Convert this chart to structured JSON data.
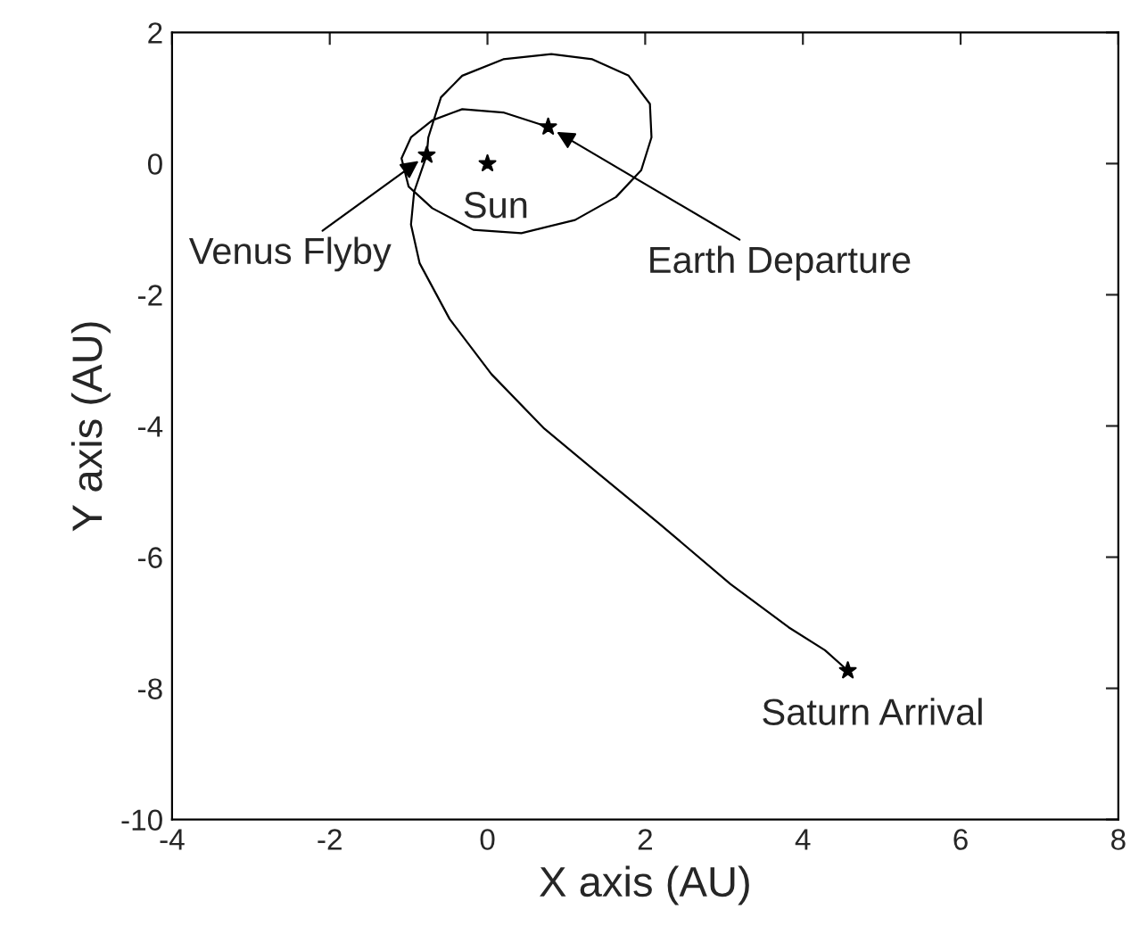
{
  "chart_data": {
    "type": "line",
    "xlabel": "X axis (AU)",
    "ylabel": "Y axis (AU)",
    "xlim": [
      -4,
      8
    ],
    "ylim": [
      -10,
      2
    ],
    "xticks": [
      -4,
      -2,
      0,
      2,
      4,
      6,
      8
    ],
    "yticks": [
      -10,
      -8,
      -6,
      -4,
      -2,
      0,
      2
    ],
    "grid": false,
    "legend": false,
    "series": [
      {
        "color": "#000000",
        "marker": "none",
        "line_style": "solid",
        "x": [
          0.77,
          0.2,
          -0.32,
          -0.7,
          -0.97,
          -1.09,
          -1.0,
          -0.7,
          -0.18,
          0.43,
          1.11,
          1.63,
          1.95,
          2.08,
          2.06,
          1.79,
          1.33,
          0.81,
          0.2,
          -0.32,
          -0.59,
          -0.75,
          -0.77,
          -0.93,
          -0.97,
          -0.86,
          -0.48,
          0.05,
          0.72,
          1.4,
          2.17,
          3.08,
          3.82,
          4.28,
          4.57
        ],
        "values": [
          0.56,
          0.78,
          0.83,
          0.66,
          0.4,
          0.08,
          -0.35,
          -0.68,
          -1.01,
          -1.06,
          -0.86,
          -0.51,
          -0.1,
          0.4,
          0.91,
          1.34,
          1.59,
          1.67,
          1.59,
          1.34,
          1.01,
          0.4,
          0.13,
          -0.43,
          -0.93,
          -1.52,
          -2.37,
          -3.21,
          -4.04,
          -4.72,
          -5.48,
          -6.41,
          -7.07,
          -7.42,
          -7.73
        ]
      },
      {
        "type": "scatter",
        "color": "#000000",
        "marker": "star",
        "x": [
          0.77,
          0,
          -0.77,
          4.57
        ],
        "values": [
          0.56,
          0,
          0.13,
          -7.73
        ]
      }
    ],
    "annotations": [
      {
        "text": "Venus Flyby",
        "x": -0.77,
        "y": 0.13
      },
      {
        "text": "Sun",
        "x": 0,
        "y": 0
      },
      {
        "text": "Earth Departure",
        "x": 0.77,
        "y": 0.56
      },
      {
        "text": "Saturn Arrival",
        "x": 4.57,
        "y": -7.73
      }
    ]
  }
}
